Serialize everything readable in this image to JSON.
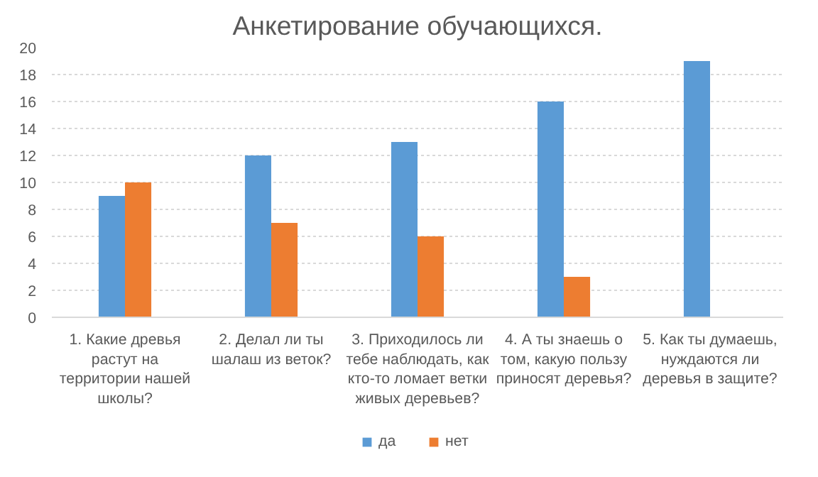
{
  "chart_data": {
    "type": "bar",
    "title": "Анкетирование обучающихся.",
    "categories": [
      "1. Какие древья\nрастут на\nтерритории нашей\nшколы?",
      "2. Делал ли ты\nшалаш из веток?",
      "3. Приходилось ли\nтебе наблюдать, как\nкто-то ломает ветки\nживых деревьев?",
      "4. А ты знаешь о\nтом, какую пользу\nприносят деревья?",
      "5. Как ты думаешь,\nнуждаются ли\nдеревья в защите?"
    ],
    "series": [
      {
        "name": "да",
        "color": "#5b9bd5",
        "values": [
          9,
          12,
          13,
          16,
          19
        ]
      },
      {
        "name": "нет",
        "color": "#ed7d31",
        "values": [
          10,
          7,
          6,
          3,
          0
        ]
      }
    ],
    "ylim": [
      0,
      20
    ],
    "yticks": [
      0,
      2,
      4,
      6,
      8,
      10,
      12,
      14,
      16,
      18,
      20
    ],
    "grid": "y",
    "legend": "bottom"
  }
}
